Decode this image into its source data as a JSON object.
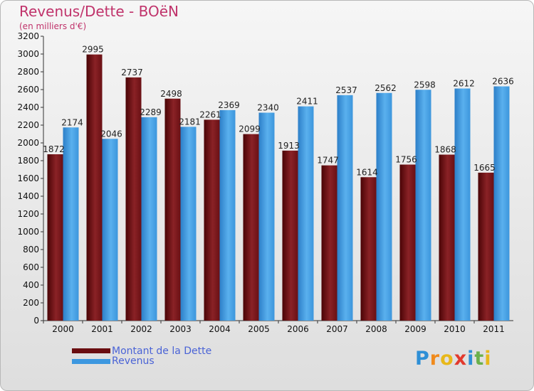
{
  "header": {
    "title": "Revenus/Dette - BOëN",
    "subtitle": "(en milliers d'€)"
  },
  "legend": {
    "debt_label": "Montant de la Dette",
    "revenue_label": "Revenus"
  },
  "logo": {
    "text": "Proxiti",
    "letters": [
      {
        "ch": "P",
        "color": "#2e8fd6"
      },
      {
        "ch": "r",
        "color": "#f08a1c"
      },
      {
        "ch": "o",
        "color": "#e8b81a"
      },
      {
        "ch": "x",
        "color": "#e23a2e"
      },
      {
        "ch": "i",
        "color": "#2e8fd6"
      },
      {
        "ch": "t",
        "color": "#6ab04c"
      },
      {
        "ch": "i",
        "color": "#e8b81a"
      }
    ]
  },
  "colors": {
    "debt": "#7a1518",
    "revenue": "#3d98e0",
    "title": "#c0336b"
  },
  "chart_data": {
    "type": "bar",
    "title": "Revenus/Dette - BOëN",
    "subtitle": "(en milliers d'€)",
    "xlabel": "",
    "ylabel": "",
    "categories": [
      "2000",
      "2001",
      "2002",
      "2003",
      "2004",
      "2005",
      "2006",
      "2007",
      "2008",
      "2009",
      "2010",
      "2011"
    ],
    "series": [
      {
        "name": "Montant de la Dette",
        "values": [
          1872,
          2995,
          2737,
          2498,
          2261,
          2099,
          1913,
          1747,
          1614,
          1756,
          1868,
          1665
        ],
        "labels": [
          "1872",
          "2995",
          "2737",
          "2498",
          "2261",
          "2099",
          "1913",
          "1747",
          "1614",
          "1756",
          "1868",
          "1665"
        ]
      },
      {
        "name": "Revenus",
        "values": [
          2174,
          2046,
          2289,
          2181,
          2369,
          2340,
          2411,
          2537,
          2562,
          2598,
          2612,
          2636
        ],
        "labels": [
          "2174",
          "2046",
          "2289",
          "2181",
          "2369",
          "2340",
          "2411",
          "2537",
          "2562",
          "2598",
          "2612",
          "2636"
        ]
      }
    ],
    "ylim": [
      0,
      3200
    ],
    "yticks": [
      0,
      200,
      400,
      600,
      800,
      1000,
      1200,
      1400,
      1600,
      1800,
      2000,
      2200,
      2400,
      2600,
      2800,
      3000,
      3200
    ],
    "grid": false,
    "legend": "bottom-left"
  }
}
